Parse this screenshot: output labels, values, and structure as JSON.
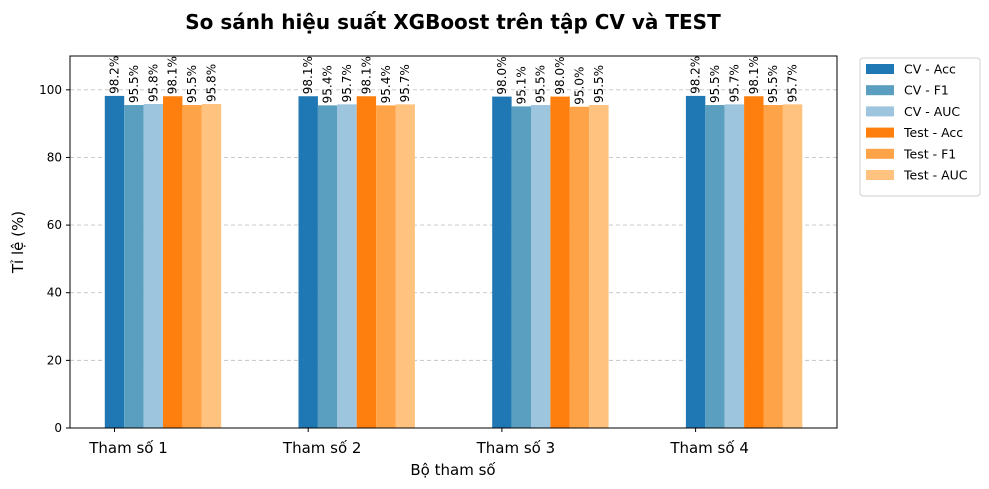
{
  "chart_data": {
    "type": "bar",
    "title": "So sánh hiệu suất XGBoost trên tập CV và TEST",
    "xlabel": "Bộ tham số",
    "ylabel": "Tỉ lệ (%)",
    "ylim": [
      0,
      110
    ],
    "yticks": [
      0,
      20,
      40,
      60,
      80,
      100
    ],
    "grid": "y-dashed",
    "legend_position": "outside-right-top",
    "categories": [
      "Tham số 1",
      "Tham số 2",
      "Tham số 3",
      "Tham số 4"
    ],
    "series": [
      {
        "name": "CV - Acc",
        "color": "#1f77b4",
        "values": [
          98.2,
          98.1,
          98.0,
          98.2
        ],
        "labels": [
          "98.2%",
          "98.1%",
          "98.0%",
          "98.2%"
        ]
      },
      {
        "name": "CV - F1",
        "color": "#5a9fbf",
        "values": [
          95.5,
          95.4,
          95.1,
          95.5
        ],
        "labels": [
          "95.5%",
          "95.4%",
          "95.1%",
          "95.5%"
        ]
      },
      {
        "name": "CV - AUC",
        "color": "#9ec5de",
        "values": [
          95.8,
          95.7,
          95.5,
          95.7
        ],
        "labels": [
          "95.8%",
          "95.7%",
          "95.5%",
          "95.7%"
        ]
      },
      {
        "name": "Test - Acc",
        "color": "#ff7f0e",
        "values": [
          98.1,
          98.1,
          98.0,
          98.1
        ],
        "labels": [
          "98.1%",
          "98.1%",
          "98.0%",
          "98.1%"
        ]
      },
      {
        "name": "Test - F1",
        "color": "#ffa348",
        "values": [
          95.5,
          95.4,
          95.0,
          95.5
        ],
        "labels": [
          "95.5%",
          "95.4%",
          "95.0%",
          "95.5%"
        ]
      },
      {
        "name": "Test - AUC",
        "color": "#ffc27f",
        "values": [
          95.8,
          95.7,
          95.5,
          95.7
        ],
        "labels": [
          "95.8%",
          "95.7%",
          "95.5%",
          "95.7%"
        ]
      }
    ]
  }
}
